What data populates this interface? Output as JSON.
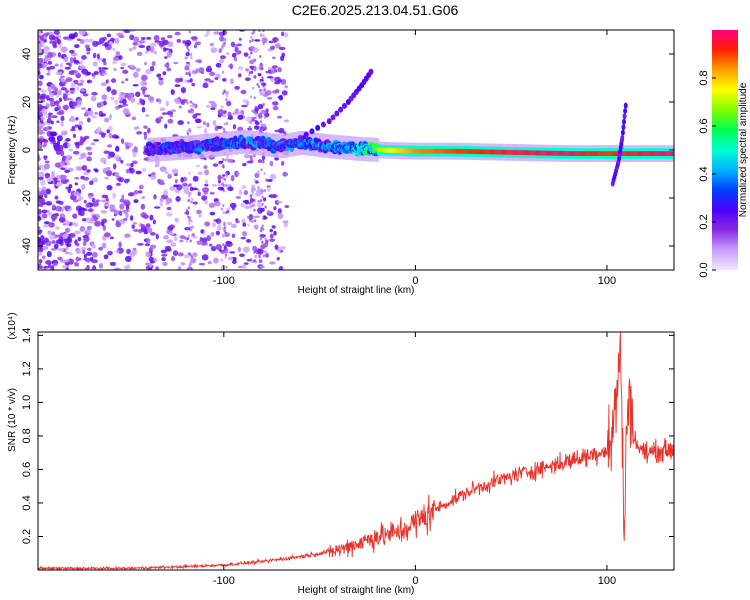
{
  "title": "C2E6.2025.213.04.51.G06",
  "chart_data": [
    {
      "type": "heatmap",
      "xlabel": "Height of straight line (km)",
      "ylabel": "Frequency (Hz)",
      "xlim": [
        -197,
        135
      ],
      "ylim": [
        -50,
        50
      ],
      "xticks": [
        -100,
        0,
        100
      ],
      "yticks": [
        -40,
        -20,
        0,
        20,
        40
      ],
      "colorbar": {
        "label": "Normalized spectral amplitude",
        "range": [
          0,
          1
        ],
        "ticks": [
          0.0,
          0.2,
          0.4,
          0.6,
          0.8
        ],
        "colors": [
          "#f2e6ff",
          "#c8a0ff",
          "#8a2be2",
          "#4b00ff",
          "#0040ff",
          "#00b4ff",
          "#00ffd0",
          "#00ff50",
          "#80ff00",
          "#ffff00",
          "#ffa000",
          "#ff2000",
          "#ff0080"
        ]
      },
      "ridge": [
        {
          "x": -140,
          "y": 0.0,
          "amp": 0.35
        },
        {
          "x": -120,
          "y": 1.0,
          "amp": 0.4
        },
        {
          "x": -100,
          "y": 2.5,
          "amp": 0.4
        },
        {
          "x": -90,
          "y": 3.5,
          "amp": 0.45
        },
        {
          "x": -70,
          "y": 1.5,
          "amp": 0.4
        },
        {
          "x": -60,
          "y": 3.0,
          "amp": 0.45
        },
        {
          "x": -45,
          "y": 1.5,
          "amp": 0.45
        },
        {
          "x": -30,
          "y": 0.5,
          "amp": 0.55
        },
        {
          "x": -20,
          "y": 0.0,
          "amp": 0.7
        },
        {
          "x": 0,
          "y": -0.5,
          "amp": 0.85
        },
        {
          "x": 20,
          "y": -0.5,
          "amp": 0.9
        },
        {
          "x": 50,
          "y": -1.0,
          "amp": 0.95
        },
        {
          "x": 80,
          "y": -1.5,
          "amp": 0.98
        },
        {
          "x": 100,
          "y": -1.5,
          "amp": 0.9
        },
        {
          "x": 110,
          "y": -1.5,
          "amp": 0.95
        },
        {
          "x": 135,
          "y": -1.5,
          "amp": 1.0
        }
      ],
      "branch": [
        {
          "x": -60,
          "y": 5
        },
        {
          "x": -45,
          "y": 12
        },
        {
          "x": -35,
          "y": 20
        },
        {
          "x": -28,
          "y": 27
        },
        {
          "x": -22,
          "y": 34
        }
      ],
      "spike": [
        {
          "x": 103,
          "y": -14
        },
        {
          "x": 106,
          "y": -5
        },
        {
          "x": 108,
          "y": 5
        },
        {
          "x": 110,
          "y": 20
        }
      ]
    },
    {
      "type": "line",
      "xlabel": "Height of straight line (km)",
      "ylabel": "SNR (10 * v/v)",
      "y_multiplier": "(x10⁴)",
      "xlim": [
        -197,
        135
      ],
      "ylim": [
        0,
        1.42
      ],
      "xticks": [
        -100,
        0,
        100
      ],
      "yticks": [
        0.2,
        0.4,
        0.6,
        0.8,
        1.0,
        1.2,
        1.4
      ],
      "color": "#e8322a",
      "x": [
        -197,
        -150,
        -120,
        -100,
        -80,
        -60,
        -40,
        -30,
        -20,
        -10,
        0,
        10,
        20,
        30,
        40,
        50,
        60,
        70,
        80,
        90,
        100,
        103,
        105,
        107,
        109,
        111,
        115,
        120,
        135
      ],
      "y": [
        0.01,
        0.01,
        0.02,
        0.03,
        0.05,
        0.08,
        0.12,
        0.16,
        0.2,
        0.22,
        0.28,
        0.36,
        0.42,
        0.48,
        0.52,
        0.56,
        0.59,
        0.62,
        0.65,
        0.68,
        0.72,
        0.8,
        1.05,
        1.35,
        0.2,
        1.1,
        0.75,
        0.7,
        0.72
      ]
    }
  ]
}
